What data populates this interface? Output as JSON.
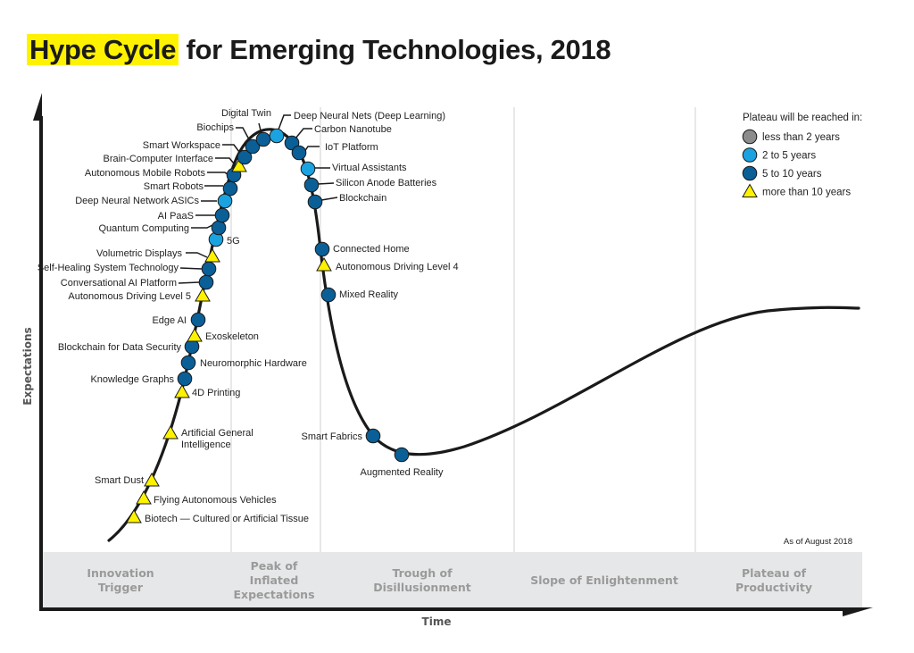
{
  "title": {
    "highlight": "Hype Cycle",
    "rest": " for Emerging Technologies, 2018",
    "highlight_color": "#fff200"
  },
  "chart_data": {
    "type": "line",
    "title": "Hype Cycle for Emerging Technologies, 2018",
    "xlabel": "Time",
    "ylabel": "Expectations",
    "note": "As of August 2018",
    "phases": [
      "Innovation Trigger",
      "Peak of Inflated Expectations",
      "Trough of Disillusionment",
      "Slope of Enlightenment",
      "Plateau of Productivity"
    ],
    "legend": {
      "title": "Plateau will be reached in:",
      "items": [
        {
          "key": "lt2",
          "label": "less than 2 years",
          "shape": "circle",
          "color": "#8c8c8c"
        },
        {
          "key": "2to5",
          "label": "2 to 5 years",
          "shape": "circle",
          "color": "#1aa3e0"
        },
        {
          "key": "5to10",
          "label": "5 to 10 years",
          "shape": "circle",
          "color": "#0a5f97"
        },
        {
          "key": "gt10",
          "label": "more than 10 years",
          "shape": "triangle",
          "color": "#fff200"
        }
      ],
      "position": "top-right"
    },
    "technologies": [
      {
        "name": "Biotech — Cultured or Artificial Tissue",
        "phase": "Innovation Trigger",
        "t": 0.02,
        "plateau": "gt10"
      },
      {
        "name": "Flying Autonomous Vehicles",
        "phase": "Innovation Trigger",
        "t": 0.04,
        "plateau": "gt10"
      },
      {
        "name": "Smart Dust",
        "phase": "Innovation Trigger",
        "t": 0.06,
        "plateau": "gt10"
      },
      {
        "name": "Artificial General Intelligence",
        "phase": "Innovation Trigger",
        "t": 0.11,
        "plateau": "gt10"
      },
      {
        "name": "4D Printing",
        "phase": "Innovation Trigger",
        "t": 0.18,
        "plateau": "gt10"
      },
      {
        "name": "Knowledge Graphs",
        "phase": "Innovation Trigger",
        "t": 0.2,
        "plateau": "5to10"
      },
      {
        "name": "Neuromorphic Hardware",
        "phase": "Innovation Trigger",
        "t": 0.22,
        "plateau": "5to10"
      },
      {
        "name": "Blockchain for Data Security",
        "phase": "Innovation Trigger",
        "t": 0.24,
        "plateau": "5to10"
      },
      {
        "name": "Exoskeleton",
        "phase": "Innovation Trigger",
        "t": 0.26,
        "plateau": "gt10"
      },
      {
        "name": "Edge AI",
        "phase": "Innovation Trigger",
        "t": 0.28,
        "plateau": "5to10"
      },
      {
        "name": "Autonomous Driving Level 5",
        "phase": "Peak of Inflated Expectations",
        "t": 0.32,
        "plateau": "gt10"
      },
      {
        "name": "Conversational AI Platform",
        "phase": "Peak of Inflated Expectations",
        "t": 0.34,
        "plateau": "5to10"
      },
      {
        "name": "Self-Healing System Technology",
        "phase": "Peak of Inflated Expectations",
        "t": 0.36,
        "plateau": "5to10"
      },
      {
        "name": "Volumetric Displays",
        "phase": "Peak of Inflated Expectations",
        "t": 0.38,
        "plateau": "gt10"
      },
      {
        "name": "5G",
        "phase": "Peak of Inflated Expectations",
        "t": 0.41,
        "plateau": "2to5"
      },
      {
        "name": "Quantum Computing",
        "phase": "Peak of Inflated Expectations",
        "t": 0.43,
        "plateau": "5to10"
      },
      {
        "name": "AI PaaS",
        "phase": "Peak of Inflated Expectations",
        "t": 0.45,
        "plateau": "5to10"
      },
      {
        "name": "Deep Neural Network ASICs",
        "phase": "Peak of Inflated Expectations",
        "t": 0.47,
        "plateau": "2to5"
      },
      {
        "name": "Smart Robots",
        "phase": "Peak of Inflated Expectations",
        "t": 0.49,
        "plateau": "5to10"
      },
      {
        "name": "Autonomous Mobile Robots",
        "phase": "Peak of Inflated Expectations",
        "t": 0.51,
        "plateau": "5to10"
      },
      {
        "name": "Brain-Computer Interface",
        "phase": "Peak of Inflated Expectations",
        "t": 0.53,
        "plateau": "gt10"
      },
      {
        "name": "Smart Workspace",
        "phase": "Peak of Inflated Expectations",
        "t": 0.55,
        "plateau": "5to10"
      },
      {
        "name": "Biochips",
        "phase": "Peak of Inflated Expectations",
        "t": 0.57,
        "plateau": "5to10"
      },
      {
        "name": "Digital Twin",
        "phase": "Peak of Inflated Expectations",
        "t": 0.59,
        "plateau": "5to10"
      },
      {
        "name": "Deep Neural Nets (Deep Learning)",
        "phase": "Peak of Inflated Expectations",
        "t": 0.61,
        "plateau": "2to5"
      },
      {
        "name": "Carbon Nanotube",
        "phase": "Peak of Inflated Expectations",
        "t": 0.63,
        "plateau": "5to10"
      },
      {
        "name": "IoT Platform",
        "phase": "Peak of Inflated Expectations",
        "t": 0.65,
        "plateau": "5to10"
      },
      {
        "name": "Virtual Assistants",
        "phase": "Peak of Inflated Expectations",
        "t": 0.67,
        "plateau": "2to5"
      },
      {
        "name": "Silicon Anode Batteries",
        "phase": "Peak of Inflated Expectations",
        "t": 0.69,
        "plateau": "5to10"
      },
      {
        "name": "Blockchain",
        "phase": "Peak of Inflated Expectations",
        "t": 0.71,
        "plateau": "5to10"
      },
      {
        "name": "Connected Home",
        "phase": "Trough of Disillusionment",
        "t": 0.76,
        "plateau": "5to10"
      },
      {
        "name": "Autonomous Driving Level 4",
        "phase": "Trough of Disillusionment",
        "t": 0.78,
        "plateau": "gt10"
      },
      {
        "name": "Mixed Reality",
        "phase": "Trough of Disillusionment",
        "t": 0.8,
        "plateau": "5to10"
      },
      {
        "name": "Smart Fabrics",
        "phase": "Trough of Disillusionment",
        "t": 0.9,
        "plateau": "5to10"
      },
      {
        "name": "Augmented Reality",
        "phase": "Trough of Disillusionment",
        "t": 0.95,
        "plateau": "5to10"
      }
    ]
  }
}
